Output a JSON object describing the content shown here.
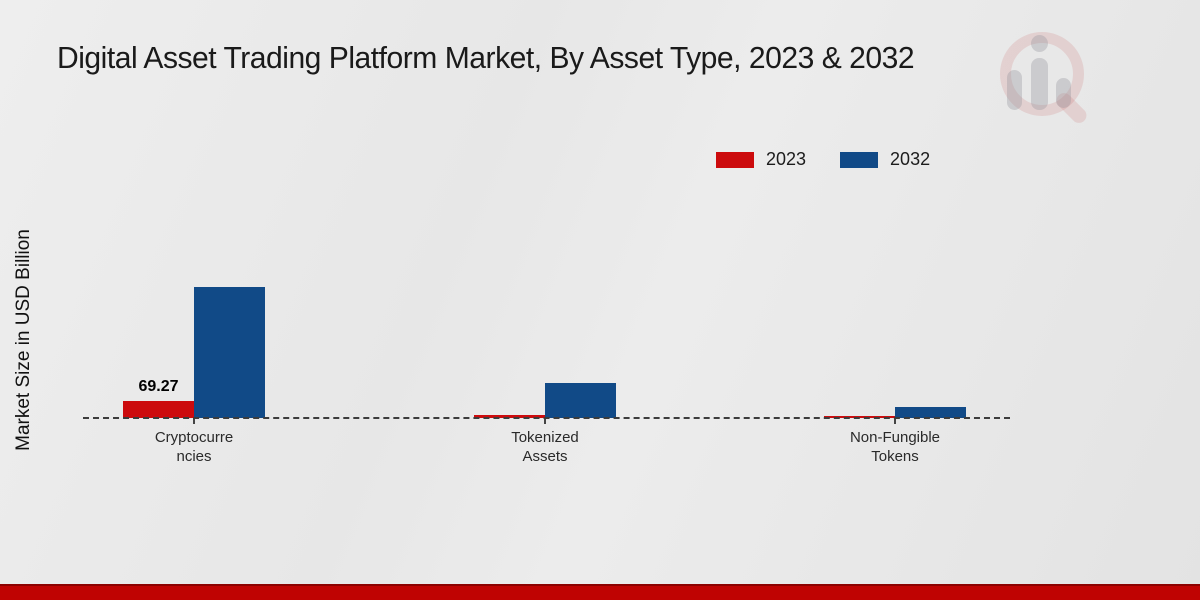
{
  "page": {
    "background_color": "#e8e8e8",
    "footer_bar_color": "#bf0302",
    "footer_bar_edge_color": "#8c0100"
  },
  "chart_data": {
    "type": "bar",
    "title": "Digital Asset Trading Platform Market, By Asset Type, 2023 & 2032",
    "xlabel": "",
    "ylabel": "Market Size in USD Billion",
    "categories": [
      "Cryptocurrencies",
      "Tokenized Assets",
      "Non-Fungible Tokens"
    ],
    "category_label_lines": [
      [
        "Cryptocurre",
        "ncies"
      ],
      [
        "Tokenized",
        "Assets"
      ],
      [
        "Non-Fungible",
        "Tokens"
      ]
    ],
    "series": [
      {
        "name": "2023",
        "color": "#cc0b0d",
        "values": [
          69.27,
          12,
          6
        ],
        "data_labels": [
          "69.27",
          "",
          ""
        ]
      },
      {
        "name": "2032",
        "color": "#114a87",
        "values": [
          517,
          139,
          44
        ],
        "data_labels": [
          "",
          "",
          ""
        ]
      }
    ],
    "baseline": 0,
    "ylim": [
      0,
      550
    ],
    "grid": false,
    "baseline_style": "dashed",
    "legend_position": "top-right",
    "units": "USD Billion"
  }
}
